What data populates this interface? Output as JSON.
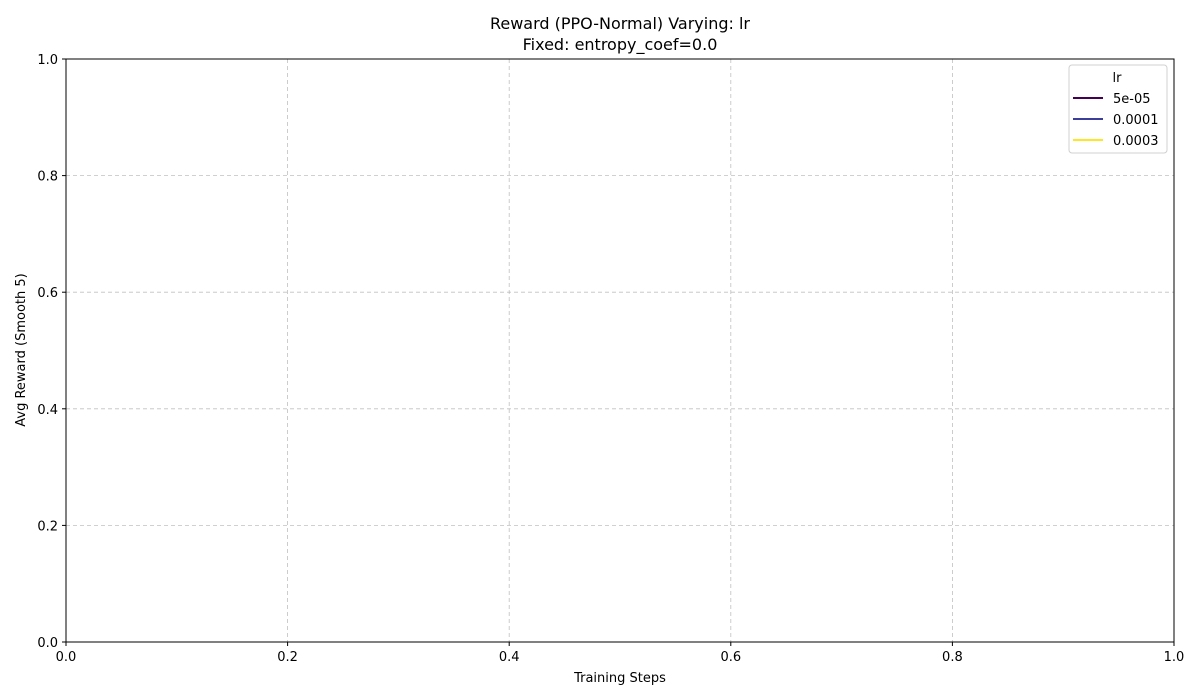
{
  "chart_data": {
    "type": "line",
    "title": "Reward (PPO-Normal) Varying: lr",
    "subtitle": "Fixed: entropy_coef=0.0",
    "xlabel": "Training Steps",
    "ylabel": "Avg Reward (Smooth 5)",
    "xlim": [
      0.0,
      1.0
    ],
    "ylim": [
      0.0,
      1.0
    ],
    "xticks": [
      "0.0",
      "0.2",
      "0.4",
      "0.6",
      "0.8",
      "1.0"
    ],
    "yticks": [
      "0.0",
      "0.2",
      "0.4",
      "0.6",
      "0.8",
      "1.0"
    ],
    "grid": true,
    "legend": {
      "title": "lr",
      "placement": "top-right"
    },
    "series": [
      {
        "name": "5e-05",
        "color": "#440154",
        "x": [],
        "y": []
      },
      {
        "name": "0.0001",
        "color": "#3b3f99",
        "x": [],
        "y": []
      },
      {
        "name": "0.0003",
        "color": "#fde725",
        "x": [],
        "y": []
      }
    ]
  }
}
